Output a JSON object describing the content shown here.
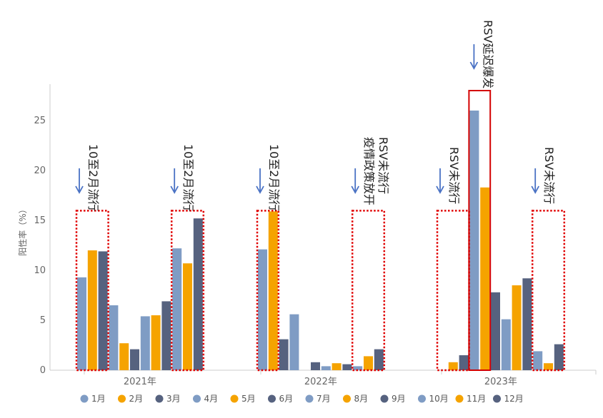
{
  "chart_data": {
    "type": "bar",
    "ylabel": "阳性率（%）",
    "ylim": [
      0,
      28
    ],
    "yticks": [
      0,
      5,
      10,
      15,
      20,
      25
    ],
    "grid": false,
    "legend_position": "bottom",
    "categories": [
      "2021年",
      "2022年",
      "2023年"
    ],
    "series": [
      {
        "name": "1月",
        "color": "#7f9cc4",
        "values": [
          9.3,
          12.1,
          null
        ]
      },
      {
        "name": "2月",
        "color": "#f5a300",
        "values": [
          12.0,
          15.9,
          0.8
        ]
      },
      {
        "name": "3月",
        "color": "#56627f",
        "values": [
          11.9,
          3.1,
          1.5
        ]
      },
      {
        "name": "4月",
        "color": "#7f9cc4",
        "values": [
          6.5,
          5.6,
          26.0
        ]
      },
      {
        "name": "5月",
        "color": "#f5a300",
        "values": [
          2.7,
          null,
          18.3
        ]
      },
      {
        "name": "6月",
        "color": "#56627f",
        "values": [
          2.1,
          0.8,
          7.8
        ]
      },
      {
        "name": "7月",
        "color": "#7f9cc4",
        "values": [
          5.4,
          0.4,
          5.1
        ]
      },
      {
        "name": "8月",
        "color": "#f5a300",
        "values": [
          5.5,
          0.7,
          8.5
        ]
      },
      {
        "name": "9月",
        "color": "#56627f",
        "values": [
          6.9,
          0.6,
          9.2
        ]
      },
      {
        "name": "10月",
        "color": "#7f9cc4",
        "values": [
          12.2,
          0.4,
          1.9
        ]
      },
      {
        "name": "11月",
        "color": "#f5a300",
        "values": [
          10.7,
          1.4,
          0.7
        ]
      },
      {
        "name": "12月",
        "color": "#56627f",
        "values": [
          15.2,
          2.1,
          2.6
        ]
      }
    ],
    "annotations": [
      {
        "text": "10至2月流行",
        "category": "2021年",
        "months": [
          "1月",
          "3月"
        ],
        "box": "dotted"
      },
      {
        "text": "10至2月流行",
        "category": "2021年",
        "months": [
          "10月",
          "12月"
        ],
        "box": "dotted"
      },
      {
        "text": "10至2月流行",
        "category": "2022年",
        "months": [
          "1月",
          "2月"
        ],
        "box": "dotted"
      },
      {
        "text": "疫情政策放开\nRSV未流行",
        "category": "2022年",
        "months": [
          "10月",
          "12月"
        ],
        "box": "dotted"
      },
      {
        "text": "RSV未流行",
        "category": "2023年",
        "months": [
          "1月",
          "3月"
        ],
        "box": "dotted"
      },
      {
        "text": "RSV延迟爆发",
        "category": "2023年",
        "months": [
          "4月",
          "5月"
        ],
        "box": "solid"
      },
      {
        "text": "RSV未流行",
        "category": "2023年",
        "months": [
          "10月",
          "12月"
        ],
        "box": "dotted"
      }
    ]
  }
}
